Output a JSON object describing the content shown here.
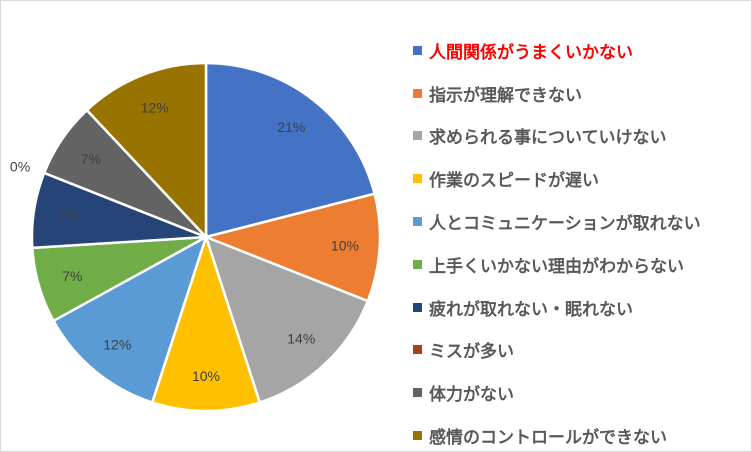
{
  "chart_data": {
    "type": "pie",
    "title": "",
    "start_angle_deg": 0,
    "direction": "clockwise",
    "legend_position": "right",
    "categories": [
      "人間関係がうまくいかない",
      "指示が理解できない",
      "求められる事についていけない",
      "作業のスピードが遅い",
      "人とコミュニケーションが取れない",
      "上手くいかない理由がわからない",
      "疲れが取れない・眠れない",
      "ミスが多い",
      "体力がない",
      "感情のコントロールができない"
    ],
    "values": [
      21,
      10,
      14,
      10,
      12,
      7,
      7,
      0,
      7,
      12
    ],
    "data_labels": [
      "21%",
      "10%",
      "14%",
      "10%",
      "12%",
      "7%",
      "7%",
      "0%",
      "7%",
      "12%"
    ],
    "colors": [
      "#4472c4",
      "#ed7d31",
      "#a5a5a5",
      "#ffc000",
      "#5b9bd5",
      "#70ad47",
      "#264478",
      "#9e480e",
      "#636363",
      "#997300"
    ],
    "highlighted_legend_index": 0,
    "highlight_color": "#ff0000"
  }
}
